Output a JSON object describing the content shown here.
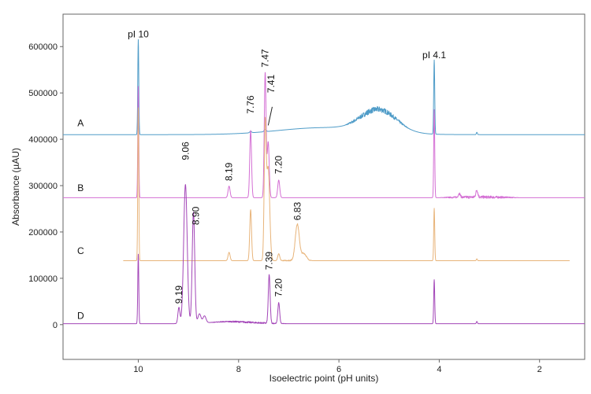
{
  "chart_data": {
    "type": "line",
    "xlabel": "Isoelectric point (pH units)",
    "ylabel": "Absorbance (µAU)",
    "xlim": [
      11.5,
      1.1
    ],
    "ylim": [
      -75000,
      670000
    ],
    "x_ticks": [
      {
        "value": 10,
        "label": "10"
      },
      {
        "value": 8,
        "label": "8"
      },
      {
        "value": 6,
        "label": "6"
      },
      {
        "value": 4,
        "label": "4"
      },
      {
        "value": 2,
        "label": "2"
      }
    ],
    "y_ticks": [
      {
        "value": 0,
        "label": "0"
      },
      {
        "value": 100000,
        "label": "100000"
      },
      {
        "value": 200000,
        "label": "200000"
      },
      {
        "value": 300000,
        "label": "300000"
      },
      {
        "value": 400000,
        "label": "400000"
      },
      {
        "value": 500000,
        "label": "500000"
      },
      {
        "value": 600000,
        "label": "600000"
      }
    ],
    "series": [
      {
        "name": "A",
        "color": "#4f9cc8",
        "baseline": 410000,
        "x_range": [
          11.5,
          1.1
        ],
        "peaks": [
          {
            "x": 10.0,
            "height": 205000,
            "width": 0.01
          },
          {
            "x": 7.76,
            "height": 3000,
            "width": 0.02
          },
          {
            "x": 7.47,
            "height": 5000,
            "width": 0.02
          },
          {
            "x": 4.1,
            "height": 160000,
            "width": 0.01
          },
          {
            "x": 3.25,
            "height": 5000,
            "width": 0.01
          }
        ],
        "broad": [
          {
            "center": 6.3,
            "height": 15000,
            "width": 0.9
          },
          {
            "center": 5.2,
            "height": 45000,
            "width": 0.35
          }
        ],
        "noise": {
          "start": 5.9,
          "end": 4.6,
          "amplitude": 12000
        },
        "label": "A"
      },
      {
        "name": "B",
        "color": "#d46fd4",
        "baseline": 274000,
        "x_range": [
          11.5,
          1.1
        ],
        "peaks": [
          {
            "x": 10.0,
            "height": 240000,
            "width": 0.01
          },
          {
            "x": 8.19,
            "height": 25000,
            "width": 0.02
          },
          {
            "x": 7.76,
            "height": 145000,
            "width": 0.018
          },
          {
            "x": 7.47,
            "height": 270000,
            "width": 0.018
          },
          {
            "x": 7.41,
            "height": 120000,
            "width": 0.02
          },
          {
            "x": 7.2,
            "height": 38000,
            "width": 0.02
          },
          {
            "x": 4.1,
            "height": 190000,
            "width": 0.01
          },
          {
            "x": 3.6,
            "height": 8000,
            "width": 0.02
          },
          {
            "x": 3.25,
            "height": 15000,
            "width": 0.02
          }
        ],
        "broad": [],
        "noise": {
          "start": 4.0,
          "end": 2.4,
          "amplitude": 6000
        },
        "label": "B"
      },
      {
        "name": "C",
        "color": "#e8b47a",
        "baseline": 138000,
        "x_range": [
          10.3,
          1.4
        ],
        "peaks": [
          {
            "x": 10.0,
            "height": 330000,
            "width": 0.01
          },
          {
            "x": 8.19,
            "height": 18000,
            "width": 0.02
          },
          {
            "x": 7.76,
            "height": 110000,
            "width": 0.018
          },
          {
            "x": 7.47,
            "height": 280000,
            "width": 0.02
          },
          {
            "x": 7.41,
            "height": 200000,
            "width": 0.03
          },
          {
            "x": 7.2,
            "height": 15000,
            "width": 0.02
          },
          {
            "x": 6.83,
            "height": 78000,
            "width": 0.04
          },
          {
            "x": 6.7,
            "height": 15000,
            "width": 0.05
          },
          {
            "x": 4.1,
            "height": 113000,
            "width": 0.01
          },
          {
            "x": 3.25,
            "height": 4000,
            "width": 0.01
          }
        ],
        "broad": [],
        "noise": {
          "start": 7.2,
          "end": 6.5,
          "amplitude": 3000
        },
        "label": "C"
      },
      {
        "name": "D",
        "color": "#a346b8",
        "baseline": 2000,
        "x_range": [
          11.5,
          1.1
        ],
        "peaks": [
          {
            "x": 10.0,
            "height": 150000,
            "width": 0.01
          },
          {
            "x": 9.19,
            "height": 35000,
            "width": 0.02
          },
          {
            "x": 9.06,
            "height": 300000,
            "width": 0.035
          },
          {
            "x": 8.9,
            "height": 240000,
            "width": 0.025
          },
          {
            "x": 8.78,
            "height": 20000,
            "width": 0.03
          },
          {
            "x": 8.68,
            "height": 15000,
            "width": 0.03
          },
          {
            "x": 7.39,
            "height": 105000,
            "width": 0.018
          },
          {
            "x": 7.2,
            "height": 45000,
            "width": 0.018
          },
          {
            "x": 4.1,
            "height": 95000,
            "width": 0.01
          },
          {
            "x": 3.25,
            "height": 5000,
            "width": 0.01
          }
        ],
        "broad": [
          {
            "center": 8.2,
            "height": 4000,
            "width": 0.4
          }
        ],
        "noise": {
          "start": 8.6,
          "end": 7.0,
          "amplitude": 3500
        },
        "label": "D"
      }
    ],
    "trace_labels": [
      {
        "text": "A",
        "x": 11.15,
        "y": 428000
      },
      {
        "text": "B",
        "x": 11.15,
        "y": 288000
      },
      {
        "text": "C",
        "x": 11.15,
        "y": 152000
      },
      {
        "text": "D",
        "x": 11.15,
        "y": 12000
      }
    ],
    "annotations": [
      {
        "text": "pI 10",
        "x": 10.0,
        "y": 620000,
        "rotate": false
      },
      {
        "text": "pI 4.1",
        "x": 4.1,
        "y": 575000,
        "rotate": false
      },
      {
        "text": "7.47",
        "x": 7.47,
        "y": 555000,
        "rotate": true
      },
      {
        "text": "7.76",
        "x": 7.76,
        "y": 455000,
        "rotate": true
      },
      {
        "text": "7.41",
        "x": 7.35,
        "y": 500000,
        "rotate": true,
        "leader": [
          7.41,
          430000,
          7.33,
          470000
        ]
      },
      {
        "text": "9.06",
        "x": 9.06,
        "y": 355000,
        "rotate": true
      },
      {
        "text": "8.19",
        "x": 8.19,
        "y": 310000,
        "rotate": true
      },
      {
        "text": "7.20",
        "x": 7.2,
        "y": 325000,
        "rotate": true
      },
      {
        "text": "8.90",
        "x": 8.85,
        "y": 215000,
        "rotate": true
      },
      {
        "text": "6.83",
        "x": 6.83,
        "y": 225000,
        "rotate": true
      },
      {
        "text": "9.19",
        "x": 9.19,
        "y": 45000,
        "rotate": true
      },
      {
        "text": "7.39",
        "x": 7.39,
        "y": 118000,
        "rotate": true
      },
      {
        "text": "7.20",
        "x": 7.2,
        "y": 60000,
        "rotate": true
      }
    ]
  }
}
